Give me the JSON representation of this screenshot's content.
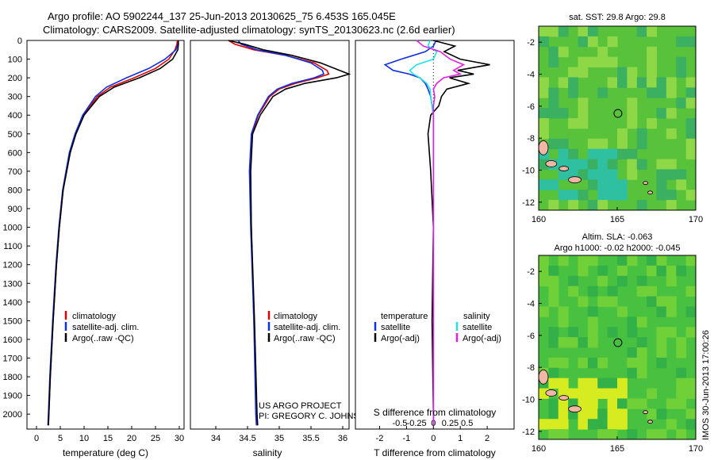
{
  "header": {
    "line1": "Argo profile: AO 5902244_137 25-Jun-2013 20130625_75 6.453S 165.045E",
    "line2": "Climatology: CARS2009. Satellite-adjusted climatology: synTS_20130623.nc (2.6d earlier)"
  },
  "colors": {
    "climatology": "#e00000",
    "satellite": "#1030e0",
    "argo": "#000000",
    "sat_salinity": "#20e0e8",
    "argo_salinity": "#e020e0"
  },
  "chart_data": [
    {
      "type": "line",
      "title": "",
      "xlabel": "temperature (deg C)",
      "ylabel": "",
      "xlim": [
        -2,
        31
      ],
      "ylim": [
        2080,
        0
      ],
      "xticks": [
        "0",
        "5",
        "10",
        "15",
        "20",
        "25",
        "30"
      ],
      "yticks": [
        "0",
        "100",
        "200",
        "300",
        "400",
        "500",
        "600",
        "700",
        "800",
        "900",
        "1000",
        "1100",
        "1200",
        "1300",
        "1400",
        "1500",
        "1600",
        "1700",
        "1800",
        "1900",
        "2000"
      ],
      "depth": [
        0,
        20,
        50,
        100,
        150,
        200,
        250,
        300,
        400,
        500,
        600,
        800,
        1000,
        1200,
        1500,
        1800,
        2000,
        2060
      ],
      "series": [
        {
          "name": "climatology",
          "values": [
            29.6,
            29.5,
            29.1,
            27.8,
            25.0,
            20.5,
            15.5,
            12.8,
            9.8,
            8.2,
            7.0,
            5.6,
            4.8,
            4.2,
            3.5,
            2.9,
            2.6,
            2.5
          ]
        },
        {
          "name": "satellite-adj. clim.",
          "values": [
            29.8,
            29.7,
            29.3,
            27.0,
            23.6,
            18.9,
            14.7,
            12.4,
            9.7,
            8.1,
            6.9,
            5.5,
            4.7,
            4.1,
            3.4,
            2.8,
            2.5,
            2.4
          ]
        },
        {
          "name": "Argo(..raw -QC)",
          "values": [
            29.8,
            29.8,
            29.7,
            28.6,
            26.0,
            21.6,
            16.3,
            13.2,
            10.0,
            8.3,
            7.1,
            5.6,
            4.8,
            4.2,
            3.5,
            2.9,
            2.6,
            2.5
          ]
        }
      ],
      "legend": [
        "climatology",
        "satellite-adj. clim.",
        "Argo(..raw -QC)"
      ]
    },
    {
      "type": "line",
      "xlabel": "salinity",
      "xlim": [
        33.6,
        36.1
      ],
      "ylim": [
        2080,
        0
      ],
      "xticks": [
        "34",
        "34.5",
        "35",
        "35.5",
        "36"
      ],
      "depth": [
        0,
        20,
        50,
        80,
        120,
        160,
        180,
        200,
        230,
        260,
        300,
        400,
        500,
        700,
        1000,
        1500,
        2000,
        2060
      ],
      "series": [
        {
          "name": "climatology",
          "values": [
            34.2,
            34.3,
            34.6,
            35.1,
            35.55,
            35.75,
            35.78,
            35.6,
            35.25,
            35.0,
            34.85,
            34.67,
            34.57,
            34.54,
            34.56,
            34.6,
            34.64,
            34.65
          ]
        },
        {
          "name": "satellite-adj. clim.",
          "values": [
            34.35,
            34.4,
            34.65,
            35.1,
            35.5,
            35.68,
            35.7,
            35.55,
            35.2,
            34.97,
            34.83,
            34.66,
            34.56,
            34.53,
            34.55,
            34.6,
            34.63,
            34.64
          ]
        },
        {
          "name": "Argo(..raw -QC)",
          "values": [
            34.2,
            34.45,
            34.75,
            35.2,
            35.65,
            35.95,
            36.1,
            35.9,
            35.4,
            35.1,
            34.9,
            34.7,
            34.58,
            34.55,
            34.56,
            34.61,
            34.65,
            34.66
          ]
        }
      ],
      "legend": [
        "climatology",
        "satellite-adj. clim.",
        "Argo(..raw -QC)"
      ],
      "annotation_lines": [
        "US ARGO PROJECT",
        "PI: GREGORY C. JOHNSON"
      ]
    },
    {
      "type": "line",
      "xlabel": "T difference from climatology",
      "xlabel_top": "S difference from climatology",
      "xlim_T": [
        -2.9,
        3.0
      ],
      "xticks_T": [
        "-2",
        "-1",
        "0",
        "1",
        "2"
      ],
      "xticks_T_values": [
        -2,
        -1,
        0,
        1,
        2
      ],
      "xticks_S": [
        "-0.5",
        "-0.25",
        "0",
        "0.25",
        "0.5"
      ],
      "xticks_S_values": [
        -0.5,
        -0.25,
        0,
        0.25,
        0.5
      ],
      "s_scale": 2.5,
      "depth": [
        0,
        30,
        60,
        100,
        130,
        160,
        180,
        200,
        230,
        260,
        300,
        350,
        400,
        500,
        700,
        1000,
        1500,
        2000,
        2060
      ],
      "series": [
        {
          "name": "temperature satellite",
          "quantity": "T",
          "values": [
            0.1,
            0.0,
            -0.3,
            -1.2,
            -1.8,
            -1.5,
            -0.9,
            -0.5,
            -0.3,
            -0.2,
            -0.1,
            -0.05,
            0.0,
            0.0,
            0.0,
            0.0,
            0.0,
            0.0,
            0.0
          ]
        },
        {
          "name": "temperature Argo(-adj)",
          "quantity": "T",
          "values": [
            0.0,
            0.8,
            0.4,
            1.0,
            2.1,
            0.9,
            1.5,
            0.6,
            1.3,
            0.5,
            0.3,
            0.2,
            -0.1,
            -0.2,
            -0.1,
            0.0,
            -0.05,
            0.0,
            0.0
          ]
        },
        {
          "name": "salinity satellite",
          "quantity": "S",
          "values": [
            -0.05,
            -0.08,
            0.05,
            0.0,
            -0.25,
            -0.35,
            -0.3,
            -0.2,
            -0.1,
            -0.05,
            -0.04,
            -0.02,
            0.0,
            0.0,
            0.0,
            0.0,
            0.0,
            0.0,
            0.0
          ]
        },
        {
          "name": "salinity Argo(-adj)",
          "quantity": "S",
          "values": [
            -0.25,
            -0.15,
            0.1,
            0.25,
            0.45,
            0.3,
            0.4,
            0.15,
            0.05,
            0.0,
            0.02,
            0.0,
            0.0,
            0.0,
            0.0,
            0.0,
            0.0,
            0.0,
            0.0
          ]
        }
      ],
      "legend_headers": [
        "temperature",
        "salinity"
      ],
      "legend_T": [
        "satellite",
        "Argo(-adj)"
      ],
      "legend_S": [
        "satellite",
        "Argo(-adj)"
      ]
    },
    {
      "type": "heatmap",
      "title": "sat. SST: 29.8 Argo: 29.8",
      "xlim": [
        160,
        170
      ],
      "ylim": [
        -12.5,
        -1
      ],
      "xticks": [
        "160",
        "165",
        "170"
      ],
      "yticks": [
        "-2",
        "-4",
        "-6",
        "-8",
        "-10",
        "-12"
      ],
      "marker": {
        "lon": 165.045,
        "lat": -6.453
      }
    },
    {
      "type": "heatmap",
      "title": "Altim. SLA: -0.063",
      "subtitle": "Argo h1000: -0.02 h2000: -0.045",
      "xlim": [
        160,
        170
      ],
      "ylim": [
        -12.5,
        -1
      ],
      "xticks": [
        "160",
        "165",
        "170"
      ],
      "yticks": [
        "-2",
        "-4",
        "-6",
        "-8",
        "-10",
        "-12"
      ],
      "marker": {
        "lon": 165.045,
        "lat": -6.453
      }
    }
  ],
  "side_stamp": "IMOS 30-Jun-2013 17:00:26"
}
